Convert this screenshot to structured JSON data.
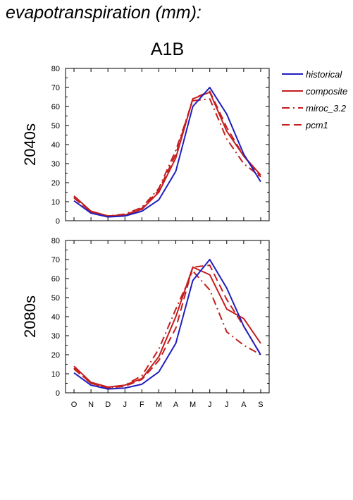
{
  "header": {
    "title": "evapotranspiration (mm):",
    "scenario": "A1B"
  },
  "colors": {
    "historical": "#1f1fbf",
    "composite": "#c41e1e",
    "miroc_3.2": "#c41e1e",
    "pcm1": "#c41e1e"
  },
  "legend": [
    {
      "name": "historical",
      "style": "solid",
      "color": "#1f1fbf"
    },
    {
      "name": "composite",
      "style": "solid",
      "color": "#c41e1e"
    },
    {
      "name": "miroc_3.2",
      "style": "dashdot",
      "color": "#c41e1e"
    },
    {
      "name": "pcm1",
      "style": "dashed",
      "color": "#c41e1e"
    }
  ],
  "chart_data": [
    {
      "type": "line",
      "row_label": "2040s",
      "categories": [
        "O",
        "N",
        "D",
        "J",
        "F",
        "M",
        "A",
        "M",
        "J",
        "J",
        "A",
        "S"
      ],
      "ylim": [
        0,
        80
      ],
      "yticks": [
        0,
        10,
        20,
        30,
        40,
        50,
        60,
        70,
        80
      ],
      "grid": false,
      "show_x_labels": false,
      "series": [
        {
          "name": "historical",
          "values": [
            10.5,
            4,
            2,
            2.5,
            5,
            11,
            26,
            60,
            70,
            56,
            35,
            20.5
          ]
        },
        {
          "name": "composite",
          "values": [
            13,
            5,
            2.5,
            3,
            6,
            15,
            33,
            64,
            67.5,
            47,
            34,
            24
          ]
        },
        {
          "name": "miroc_3.2",
          "values": [
            12,
            4.5,
            2.5,
            3.5,
            7,
            17,
            37,
            63,
            64,
            43,
            30,
            23
          ]
        },
        {
          "name": "pcm1",
          "values": [
            12.5,
            4.5,
            2.5,
            3,
            6.5,
            16,
            35,
            64,
            68,
            49,
            34,
            23
          ]
        }
      ]
    },
    {
      "type": "line",
      "row_label": "2080s",
      "categories": [
        "O",
        "N",
        "D",
        "J",
        "F",
        "M",
        "A",
        "M",
        "J",
        "J",
        "A",
        "S"
      ],
      "ylim": [
        0,
        80
      ],
      "yticks": [
        0,
        10,
        20,
        30,
        40,
        50,
        60,
        70,
        80
      ],
      "grid": false,
      "show_x_labels": true,
      "series": [
        {
          "name": "historical",
          "values": [
            10.5,
            4,
            2,
            2.5,
            4.5,
            11,
            26,
            59,
            70,
            55,
            35,
            20
          ]
        },
        {
          "name": "composite",
          "values": [
            14,
            5.5,
            3,
            4,
            7.5,
            19,
            40,
            66,
            62,
            44,
            39,
            26
          ]
        },
        {
          "name": "miroc_3.2",
          "values": [
            12.5,
            5,
            2.5,
            4,
            9,
            23,
            44,
            64,
            54,
            32,
            25,
            20
          ]
        },
        {
          "name": "pcm1",
          "values": [
            13,
            5,
            2.5,
            3.5,
            7,
            17,
            34,
            66,
            67,
            49,
            35,
            20
          ]
        }
      ]
    }
  ]
}
